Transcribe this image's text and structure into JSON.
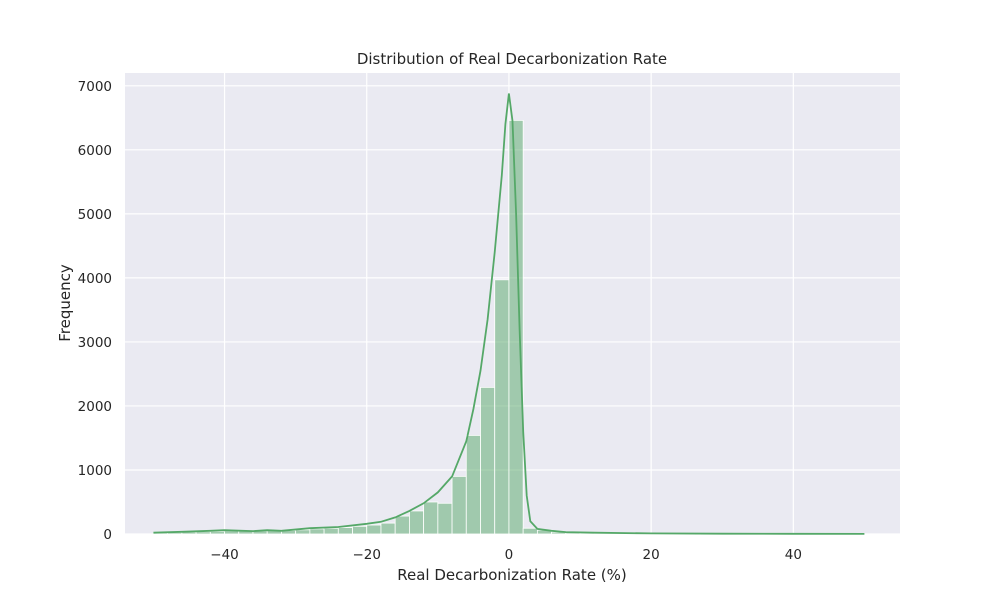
{
  "chart_data": {
    "type": "bar",
    "title": "Distribution of Real Decarbonization Rate",
    "xlabel": "Real Decarbonization Rate (%)",
    "ylabel": "Frequency",
    "xlim": [
      -54,
      55
    ],
    "ylim": [
      0,
      7200
    ],
    "x_ticks": [
      -40,
      -20,
      0,
      20,
      40
    ],
    "y_ticks": [
      0,
      1000,
      2000,
      3000,
      4000,
      5000,
      6000,
      7000
    ],
    "x_tick_labels": [
      "−40",
      "−20",
      "0",
      "20",
      "40"
    ],
    "y_tick_labels": [
      "0",
      "1000",
      "2000",
      "3000",
      "4000",
      "5000",
      "6000",
      "7000"
    ],
    "grid": true,
    "bar_color": "#55a868",
    "line_color": "#55a868",
    "background": "#eaeaf2",
    "bins": {
      "edges": [
        -50,
        -48,
        -46,
        -44,
        -42,
        -40,
        -38,
        -36,
        -34,
        -32,
        -30,
        -28,
        -26,
        -24,
        -22,
        -20,
        -18,
        -16,
        -14,
        -12,
        -10,
        -8,
        -6,
        -4,
        -2,
        0,
        2,
        4,
        6,
        8,
        10,
        12,
        14,
        16,
        18,
        20,
        22,
        24,
        26,
        28,
        30,
        32,
        34,
        36,
        38,
        40,
        42,
        44,
        46,
        48,
        50
      ],
      "counts": [
        20,
        25,
        30,
        35,
        40,
        50,
        45,
        50,
        60,
        55,
        65,
        80,
        90,
        100,
        120,
        140,
        170,
        280,
        360,
        500,
        480,
        900,
        1540,
        2290,
        3970,
        6460,
        90,
        60,
        30,
        20,
        15,
        10,
        8,
        6,
        5,
        4,
        3,
        3,
        2,
        2,
        2,
        2,
        2,
        2,
        2,
        2,
        2,
        2,
        2,
        2
      ]
    },
    "kde": {
      "x": [
        -50,
        -46,
        -42,
        -40,
        -36,
        -34,
        -32,
        -28,
        -24,
        -20,
        -18,
        -16,
        -14,
        -12,
        -10,
        -8,
        -6,
        -5,
        -4,
        -3,
        -2,
        -1,
        -0.5,
        0,
        0.5,
        1,
        1.5,
        2,
        2.5,
        3,
        4,
        6,
        8,
        12,
        20,
        30,
        40,
        50
      ],
      "y": [
        20,
        35,
        50,
        60,
        45,
        60,
        50,
        90,
        110,
        160,
        190,
        260,
        360,
        480,
        650,
        900,
        1450,
        1950,
        2550,
        3350,
        4400,
        5600,
        6400,
        6880,
        6450,
        5000,
        3200,
        1600,
        600,
        200,
        80,
        50,
        30,
        20,
        10,
        5,
        3,
        2
      ]
    }
  }
}
